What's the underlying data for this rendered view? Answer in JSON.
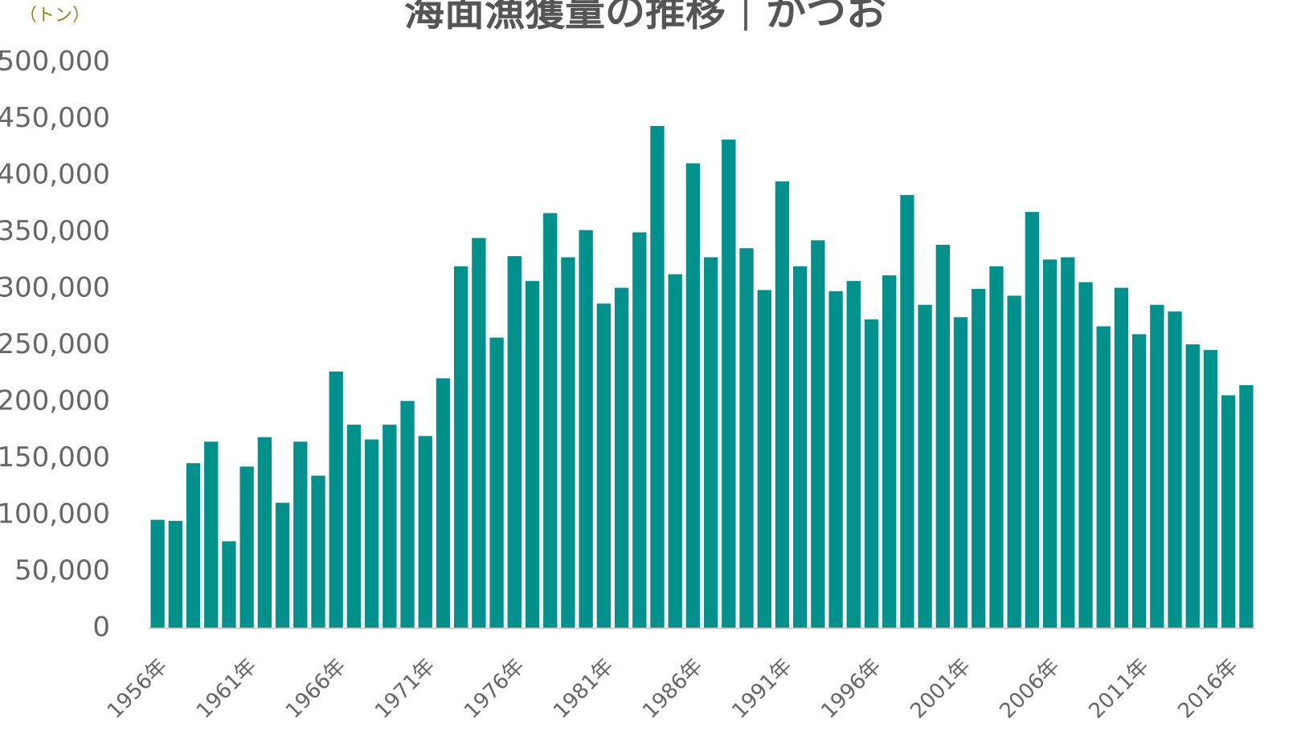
{
  "chart_data": {
    "type": "bar",
    "title": "海面漁獲量の推移｜かつお",
    "y_unit_label": "（トン）",
    "categories": [
      "1956年",
      null,
      null,
      null,
      null,
      "1961年",
      null,
      null,
      null,
      null,
      "1966年",
      null,
      null,
      null,
      null,
      "1971年",
      null,
      null,
      null,
      null,
      "1976年",
      null,
      null,
      null,
      null,
      "1981年",
      null,
      null,
      null,
      null,
      "1986年",
      null,
      null,
      null,
      null,
      "1991年",
      null,
      null,
      null,
      null,
      "1996年",
      null,
      null,
      null,
      null,
      "2001年",
      null,
      null,
      null,
      null,
      "2006年",
      null,
      null,
      null,
      null,
      "2011年",
      null,
      null,
      null,
      null,
      "2016年",
      null
    ],
    "values": [
      96000,
      95000,
      146000,
      165000,
      77000,
      143000,
      169000,
      111000,
      165000,
      135000,
      227000,
      180000,
      167000,
      180000,
      201000,
      170000,
      221000,
      320000,
      345000,
      257000,
      329000,
      307000,
      367000,
      328000,
      352000,
      287000,
      301000,
      350000,
      444000,
      313000,
      411000,
      328000,
      432000,
      336000,
      299000,
      395000,
      320000,
      343000,
      298000,
      307000,
      273000,
      312000,
      383000,
      286000,
      339000,
      275000,
      300000,
      320000,
      294000,
      368000,
      326000,
      328000,
      306000,
      267000,
      301000,
      260000,
      286000,
      280000,
      251000,
      246000,
      206000,
      215000
    ],
    "color": "#00918d",
    "ylim": [
      0,
      500000
    ],
    "yticks": [
      0,
      {
        "value": 50000,
        "label": "50,000"
      },
      {
        "value": 100000,
        "label": "100,000"
      },
      {
        "value": 150000,
        "label": "150,000"
      },
      {
        "value": 200000,
        "label": "200,000"
      },
      {
        "value": 250000,
        "label": "250,000"
      },
      {
        "value": 300000,
        "label": "300,000"
      },
      {
        "value": 350000,
        "label": "350,000"
      },
      {
        "value": 400000,
        "label": "400,000"
      },
      {
        "value": 450000,
        "label": "450,000"
      },
      {
        "value": 500000,
        "label": "500,000"
      }
    ],
    "grid": false
  }
}
